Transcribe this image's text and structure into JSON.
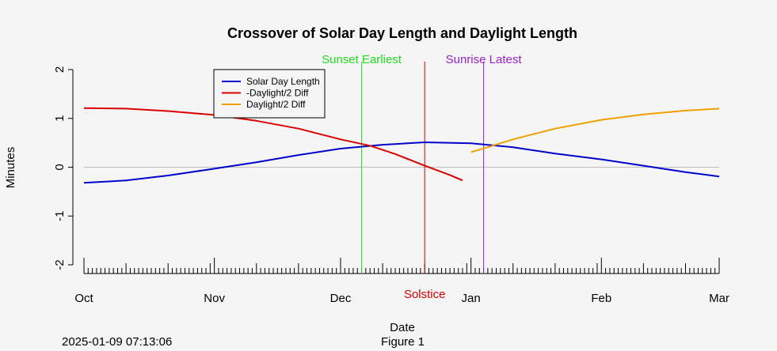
{
  "footer": {
    "timestamp": "2025-01-09 07:13:06",
    "figure_label": "Figure 1"
  },
  "chart_data": {
    "type": "line",
    "title": "Crossover of Solar Day Length and Daylight Length",
    "xlabel": "Date",
    "ylabel": "Minutes",
    "x_range": [
      "2024-10-01",
      "2025-03-01"
    ],
    "ylim": [
      -2,
      2
    ],
    "x_tick_labels": [
      {
        "date": "2024-10-01",
        "label": "Oct"
      },
      {
        "date": "2024-11-01",
        "label": "Nov"
      },
      {
        "date": "2024-12-01",
        "label": "Dec"
      },
      {
        "date": "2025-01-01",
        "label": "Jan"
      },
      {
        "date": "2025-02-01",
        "label": "Feb"
      },
      {
        "date": "2025-03-01",
        "label": "Mar"
      }
    ],
    "y_ticks": [
      -2,
      -1,
      0,
      1,
      2
    ],
    "y_tick_labels": [
      "-2",
      "-1",
      "0",
      "1",
      "2"
    ],
    "reference_line": {
      "y": 0,
      "color": "#bdbdbd"
    },
    "legend": {
      "position": "top-left"
    },
    "series": [
      {
        "name": "Solar Day Length",
        "color": "#0000cc",
        "points": [
          [
            "2024-10-01",
            -0.32
          ],
          [
            "2024-10-11",
            -0.27
          ],
          [
            "2024-10-21",
            -0.17
          ],
          [
            "2024-11-01",
            -0.03
          ],
          [
            "2024-11-11",
            0.1
          ],
          [
            "2024-11-21",
            0.25
          ],
          [
            "2024-12-01",
            0.38
          ],
          [
            "2024-12-11",
            0.46
          ],
          [
            "2024-12-21",
            0.51
          ],
          [
            "2025-01-01",
            0.49
          ],
          [
            "2025-01-11",
            0.41
          ],
          [
            "2025-01-21",
            0.28
          ],
          [
            "2025-02-01",
            0.16
          ],
          [
            "2025-02-11",
            0.03
          ],
          [
            "2025-02-21",
            -0.1
          ],
          [
            "2025-03-01",
            -0.19
          ]
        ]
      },
      {
        "name": "-Daylight/2 Diff",
        "color": "#dd0000",
        "points": [
          [
            "2024-10-01",
            1.21
          ],
          [
            "2024-10-11",
            1.2
          ],
          [
            "2024-10-21",
            1.15
          ],
          [
            "2024-11-01",
            1.07
          ],
          [
            "2024-11-11",
            0.95
          ],
          [
            "2024-11-21",
            0.79
          ],
          [
            "2024-12-01",
            0.57
          ],
          [
            "2024-12-08",
            0.44
          ],
          [
            "2024-12-14",
            0.27
          ],
          [
            "2024-12-21",
            0.03
          ],
          [
            "2024-12-27",
            -0.16
          ],
          [
            "2024-12-30",
            -0.27
          ]
        ]
      },
      {
        "name": "Daylight/2 Diff",
        "color": "#f0a000",
        "points": [
          [
            "2025-01-01",
            0.31
          ],
          [
            "2025-01-05",
            0.41
          ],
          [
            "2025-01-11",
            0.57
          ],
          [
            "2025-01-21",
            0.79
          ],
          [
            "2025-02-01",
            0.97
          ],
          [
            "2025-02-11",
            1.08
          ],
          [
            "2025-02-21",
            1.16
          ],
          [
            "2025-03-01",
            1.2
          ]
        ]
      }
    ],
    "vertical_lines": [
      {
        "date": "2024-12-06",
        "label": "Sunset Earliest",
        "color": "#22dd22",
        "label_position": "top"
      },
      {
        "date": "2024-12-21",
        "label": "Solstice",
        "color": "#dd0000",
        "label_position": "bottom"
      },
      {
        "date": "2025-01-04",
        "label": "Sunrise Latest",
        "color": "#9922cc",
        "label_position": "top"
      }
    ]
  }
}
